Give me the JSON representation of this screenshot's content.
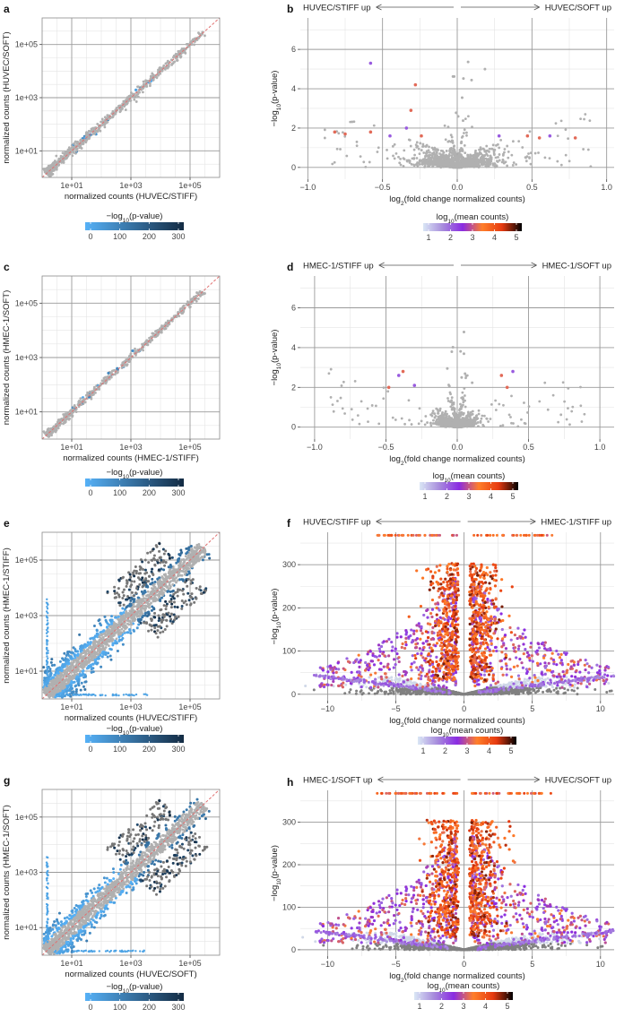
{
  "figure": {
    "colors": {
      "grid_major": "#9a9a9a",
      "grid_minor": "#e4e4e4",
      "frame": "#8c8c8c",
      "point_gray": "#b0b0b0",
      "dark_gray": "#777777",
      "diagonal": "#e07070",
      "blue_scale": [
        "#56b1f7",
        "#132b43"
      ],
      "count_scale": [
        "#d9e6f5",
        "#a78bdc",
        "#8a2be2",
        "#ff7f2a",
        "#e63a10",
        "#000000"
      ]
    },
    "sub": "10",
    "sub_two": "2"
  },
  "chart_data": [
    {
      "id": "a",
      "label": "a",
      "type": "scatter",
      "scale": "log",
      "density": 0.1,
      "high_gray": false,
      "xlabel": "normalized counts (HUVEC/STIFF)",
      "ylabel": "normalized counts (HUVEC/SOFT)",
      "x_ticks": [
        "1e+01",
        "1e+03",
        "1e+05"
      ],
      "y_ticks": [
        "1e+01",
        "1e+03",
        "1e+05"
      ],
      "xlim": [
        0,
        6
      ],
      "ylim": [
        0,
        6
      ],
      "colorbar": {
        "title_pre": "−log",
        "title_post": "(p-value)",
        "ticks": [
          "0",
          "100",
          "200",
          "300"
        ],
        "range": [
          0,
          300
        ]
      }
    },
    {
      "id": "b",
      "label": "b",
      "type": "scatter",
      "scale": "volcano",
      "xlim": [
        -1.05,
        1.05
      ],
      "ylim": [
        -0.6,
        7.6
      ],
      "x_ticks": [
        -1.0,
        -0.5,
        0.0,
        0.5,
        1.0
      ],
      "x_tick_labels": [
        "−1.0",
        "−0.5",
        "0.0",
        "0.5",
        "1.0"
      ],
      "y_ticks": [
        0,
        2,
        4,
        6
      ],
      "y_tick_labels": [
        "0",
        "2",
        "4",
        "6"
      ],
      "width": 0.09,
      "n_base": 1200,
      "n_mid": 0,
      "n_high": 0,
      "highlights": [
        [
          -0.58,
          5.3
        ],
        [
          -0.28,
          4.2
        ],
        [
          -0.31,
          2.9
        ],
        [
          -0.34,
          2.0
        ],
        [
          -0.75,
          1.7
        ],
        [
          -0.82,
          1.8
        ],
        [
          -0.45,
          1.6
        ],
        [
          -0.58,
          1.8
        ],
        [
          -0.24,
          1.6
        ],
        [
          0.28,
          1.6
        ],
        [
          0.47,
          1.6
        ],
        [
          0.55,
          1.5
        ],
        [
          0.62,
          1.6
        ],
        [
          0.79,
          1.5
        ]
      ],
      "condition_left": "HUVEC/STIFF up",
      "condition_right": "HUVEC/SOFT up",
      "xlabel_pre": "log",
      "xlabel_post": "(fold change normalized counts)",
      "ylabel_pre": "−log",
      "ylabel_post": "(p-value)",
      "colorbar": {
        "title_pre": "log",
        "title_post": "(mean counts)",
        "ticks": [
          "1",
          "2",
          "3",
          "4",
          "5"
        ],
        "range": [
          1,
          5
        ]
      }
    },
    {
      "id": "c",
      "label": "c",
      "type": "scatter",
      "scale": "log",
      "density": 0.05,
      "high_gray": false,
      "xlabel": "normalized counts (HMEC-1/STIFF)",
      "ylabel": "normalized counts (HMEC-1/SOFT)",
      "x_ticks": [
        "1e+01",
        "1e+03",
        "1e+05"
      ],
      "y_ticks": [
        "1e+01",
        "1e+03",
        "1e+05"
      ],
      "xlim": [
        0,
        6
      ],
      "ylim": [
        0,
        6
      ],
      "colorbar": {
        "title_pre": "−log",
        "title_post": "(p-value)",
        "ticks": [
          "0",
          "100",
          "200",
          "300"
        ],
        "range": [
          0,
          300
        ]
      }
    },
    {
      "id": "d",
      "label": "d",
      "type": "scatter",
      "scale": "volcano",
      "xlim": [
        -1.1,
        1.1
      ],
      "ylim": [
        -0.6,
        7.6
      ],
      "x_ticks": [
        -1.0,
        -0.5,
        0.0,
        0.5,
        1.0
      ],
      "x_tick_labels": [
        "−1.0",
        "−0.5",
        "0.0",
        "0.5",
        "1.0"
      ],
      "y_ticks": [
        0,
        2,
        4,
        6
      ],
      "y_tick_labels": [
        "0",
        "2",
        "4",
        "6"
      ],
      "width": 0.05,
      "n_base": 900,
      "n_mid": 0,
      "n_high": 0,
      "highlights": [
        [
          -0.41,
          2.6
        ],
        [
          -0.38,
          2.8
        ],
        [
          -0.48,
          2.0
        ],
        [
          -0.3,
          2.1
        ],
        [
          0.31,
          2.6
        ],
        [
          0.35,
          2.0
        ],
        [
          0.39,
          2.8
        ]
      ],
      "condition_left": "HMEC-1/STIFF up",
      "condition_right": "HMEC-1/SOFT up",
      "xlabel_pre": "log",
      "xlabel_post": "(fold change normalized counts)",
      "ylabel_pre": "−log",
      "ylabel_post": "(p-value)",
      "colorbar": {
        "title_pre": "log",
        "title_post": "(mean counts)",
        "ticks": [
          "1",
          "2",
          "3",
          "4",
          "5"
        ],
        "range": [
          1,
          5
        ]
      }
    },
    {
      "id": "e",
      "label": "e",
      "type": "scatter",
      "scale": "log",
      "density": 0.9,
      "high_gray": true,
      "xlabel": "normalized counts (HUVEC/STIFF)",
      "ylabel": "normalized counts (HMEC-1/STIFF)",
      "x_ticks": [
        "1e+01",
        "1e+03",
        "1e+05"
      ],
      "y_ticks": [
        "1e+01",
        "1e+03",
        "1e+05"
      ],
      "xlim": [
        0,
        6
      ],
      "ylim": [
        0,
        6
      ],
      "colorbar": {
        "title_pre": "−log",
        "title_post": "(p-value)",
        "ticks": [
          "0",
          "100",
          "200",
          "300"
        ],
        "range": [
          0,
          300
        ]
      }
    },
    {
      "id": "f",
      "label": "f",
      "type": "scatter",
      "scale": "volcano",
      "xlim": [
        -12,
        11
      ],
      "ylim": [
        -15,
        375
      ],
      "x_ticks": [
        -10,
        -5,
        0,
        5,
        10
      ],
      "x_tick_labels": [
        "−10",
        "−5",
        "0",
        "5",
        "10"
      ],
      "y_ticks": [
        0,
        100,
        200,
        300
      ],
      "y_tick_labels": [
        "0",
        "100",
        "200",
        "300"
      ],
      "width": 1.6,
      "n_base": 1300,
      "n_mid": 900,
      "n_high": 700,
      "highlights": [],
      "condition_left": "HUVEC/STIFF up",
      "condition_right": "HMEC-1/STIFF up",
      "xlabel_pre": "log",
      "xlabel_post": "(fold change normalized counts)",
      "ylabel_pre": "−log",
      "ylabel_post": "(p-value)",
      "colorbar": {
        "title_pre": "log",
        "title_post": "(mean counts)",
        "ticks": [
          "1",
          "2",
          "3",
          "4",
          "5"
        ],
        "range": [
          1,
          5
        ]
      }
    },
    {
      "id": "g",
      "label": "g",
      "type": "scatter",
      "scale": "log",
      "density": 0.75,
      "high_gray": true,
      "xlabel": "normalized counts (HUVEC/SOFT)",
      "ylabel": "normalized counts (HMEC-1/SOFT)",
      "x_ticks": [
        "1e+01",
        "1e+03",
        "1e+05"
      ],
      "y_ticks": [
        "1e+01",
        "1e+03",
        "1e+05"
      ],
      "xlim": [
        0,
        6
      ],
      "ylim": [
        0,
        6
      ],
      "colorbar": {
        "title_pre": "−log",
        "title_post": "(p-value)",
        "ticks": [
          "0",
          "100",
          "200",
          "300"
        ],
        "range": [
          0,
          300
        ]
      }
    },
    {
      "id": "h",
      "label": "h",
      "type": "scatter",
      "scale": "volcano",
      "xlim": [
        -12,
        11
      ],
      "ylim": [
        -15,
        375
      ],
      "x_ticks": [
        -10,
        -5,
        0,
        5,
        10
      ],
      "x_tick_labels": [
        "−10",
        "−5",
        "0",
        "5",
        "10"
      ],
      "y_ticks": [
        0,
        100,
        200,
        300
      ],
      "y_tick_labels": [
        "0",
        "100",
        "200",
        "300"
      ],
      "width": 1.5,
      "n_base": 1300,
      "n_mid": 900,
      "n_high": 700,
      "highlights": [],
      "condition_left": "HMEC-1/SOFT up",
      "condition_right": "HUVEC/SOFT up",
      "xlabel_pre": "log",
      "xlabel_post": "(fold change normalized counts)",
      "ylabel_pre": "−log",
      "ylabel_post": "(p-value)",
      "colorbar": {
        "title_pre": "log",
        "title_post": "(mean counts)",
        "ticks": [
          "1",
          "2",
          "3",
          "4",
          "5"
        ],
        "range": [
          1,
          5
        ]
      }
    }
  ]
}
